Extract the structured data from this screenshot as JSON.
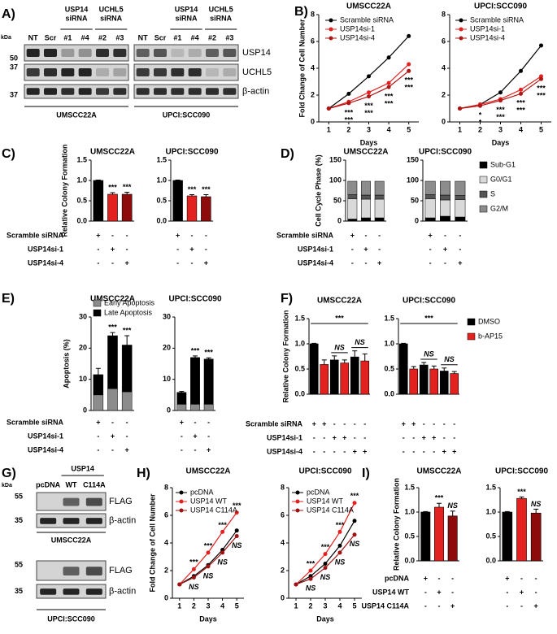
{
  "panel_labels": [
    "A)",
    "B)",
    "C)",
    "D)",
    "E)",
    "F)",
    "G)",
    "H)",
    "I)"
  ],
  "blots": [
    {
      "kda_label": "kDa",
      "lanes": [
        "NT",
        "Scr",
        "#1",
        "#4",
        "#2",
        "#3"
      ],
      "lane_groups": [
        [
          "USP14",
          "siRNA"
        ],
        [
          "UCHL5",
          "siRNA"
        ]
      ],
      "markers": [
        50,
        37,
        37
      ],
      "proteins": [
        "USP14",
        "UCHL5",
        "β-actin"
      ],
      "cell_lines": [
        "UMSCC22A",
        "UPCI:SCC090"
      ]
    },
    {
      "kda_label": "kDa",
      "lanes": [
        "pcDNA",
        "WT",
        "C114A"
      ],
      "lane_group": "USP14",
      "markers": [
        55,
        35
      ],
      "proteins": [
        "FLAG",
        "β-actin"
      ],
      "cell_lines": [
        "UMSCC22A",
        "UPCI:SCC090"
      ]
    }
  ],
  "chart_data": [
    {
      "type": "line",
      "title": "UMSCC22A",
      "y_label": "Fold Change of Cell Number",
      "x_label": "Days",
      "x": [
        1,
        2,
        3,
        4,
        5
      ],
      "xlim": [
        0.5,
        5.5
      ],
      "xticks": [
        1,
        2,
        3,
        4,
        5
      ],
      "ylim": [
        0,
        8
      ],
      "yticks": [
        0,
        2,
        4,
        6,
        8
      ],
      "series": [
        {
          "name": "Scramble siRNA",
          "color": "#000000",
          "values": [
            1,
            2.1,
            3.4,
            4.8,
            6.4
          ]
        },
        {
          "name": "USP14si-1",
          "color": "#e3211f",
          "values": [
            1,
            1.5,
            2.2,
            2.9,
            4.3
          ],
          "sig_labels": [
            null,
            "***",
            "***",
            "***",
            "***"
          ]
        },
        {
          "name": "USP14si-4",
          "color": "#b01515",
          "values": [
            1,
            1.4,
            1.9,
            2.6,
            3.8
          ],
          "sig_labels": [
            null,
            "***",
            "***",
            "***",
            "***"
          ]
        }
      ]
    },
    {
      "type": "line",
      "title": "UPCI:SCC090",
      "x_label": "Days",
      "x": [
        1,
        2,
        3,
        4,
        5
      ],
      "xlim": [
        0.5,
        5.5
      ],
      "xticks": [
        1,
        2,
        3,
        4,
        5
      ],
      "ylim": [
        0,
        8
      ],
      "yticks": [
        0,
        2,
        4,
        6,
        8
      ],
      "series": [
        {
          "name": "Scramble siRNA",
          "color": "#000000",
          "values": [
            1,
            1.3,
            2.2,
            3.8,
            5.7
          ]
        },
        {
          "name": "USP14si-1",
          "color": "#e3211f",
          "values": [
            1,
            1.3,
            1.7,
            2.4,
            3.4
          ],
          "sig_labels": [
            null,
            "*",
            "***",
            "***",
            "***"
          ]
        },
        {
          "name": "USP14si-4",
          "color": "#b01515",
          "values": [
            1,
            1.2,
            1.6,
            2.1,
            3.2
          ],
          "sig_labels": [
            null,
            "*",
            "***",
            "***",
            "***"
          ]
        }
      ]
    },
    {
      "type": "bar",
      "title": "UMSCC22A",
      "y_label": "Relative Colony Formation",
      "values": [
        1,
        0.66,
        0.66
      ],
      "errors": [
        0.01,
        0.04,
        0.05
      ],
      "colors": [
        "#000000",
        "#e3211f",
        "#8e0b0b"
      ],
      "sig_labels": [
        null,
        "***",
        "***"
      ],
      "ylim": [
        0,
        1.5
      ],
      "yticks": [
        {
          "value": 0,
          "label": "0.0"
        },
        0.5,
        {
          "value": 1,
          "label": "1.0"
        },
        1.5
      ],
      "condition_labels": [
        "Scramble siRNA",
        "USP14si-1",
        "USP14si-4"
      ],
      "condition_marks": [
        [
          "+",
          "-",
          "-"
        ],
        [
          "-",
          "+",
          "-"
        ],
        [
          "-",
          "-",
          "+"
        ]
      ]
    },
    {
      "type": "bar",
      "title": "UPCI:SCC090",
      "values": [
        1,
        0.62,
        0.6
      ],
      "errors": [
        0.01,
        0.03,
        0.05
      ],
      "colors": [
        "#000000",
        "#e3211f",
        "#8e0b0b"
      ],
      "sig_labels": [
        null,
        "***",
        "***"
      ],
      "ylim": [
        0,
        1.5
      ],
      "yticks": [
        {
          "value": 0,
          "label": "0.0"
        },
        0.5,
        {
          "value": 1,
          "label": "1.0"
        },
        1.5
      ],
      "condition_marks": [
        [
          "+",
          "-",
          "-"
        ],
        [
          "-",
          "+",
          "-"
        ],
        [
          "-",
          "-",
          "+"
        ]
      ]
    },
    {
      "type": "stacked_bar",
      "title": "UMSCC22A",
      "y_label": "Cell Cycle Phase (%)",
      "ylim": [
        0,
        150
      ],
      "yticks": [
        0,
        50,
        100,
        150
      ],
      "series": [
        {
          "color": "#000000",
          "values": [
            5,
            8,
            8
          ]
        },
        {
          "color": "#d9d9d9",
          "values": [
            50,
            46,
            46
          ]
        },
        {
          "color": "#555555",
          "values": [
            10,
            10,
            10
          ]
        },
        {
          "color": "#8c8c8c",
          "values": [
            33,
            34,
            34
          ]
        }
      ],
      "condition_labels": [
        "Scramble siRNA",
        "USP14si-1",
        "USP14si-4"
      ],
      "condition_marks": [
        [
          "+",
          "-",
          "-"
        ],
        [
          "-",
          "+",
          "-"
        ],
        [
          "-",
          "-",
          "+"
        ]
      ]
    },
    {
      "type": "stacked_bar",
      "title": "UPCI:SCC090",
      "ylim": [
        0,
        150
      ],
      "yticks": [
        0,
        50,
        100,
        150
      ],
      "series": [
        {
          "name": "Sub-G1",
          "color": "#000000",
          "values": [
            8,
            12,
            10
          ]
        },
        {
          "name": "G0/G1",
          "color": "#d9d9d9",
          "values": [
            47,
            40,
            43
          ]
        },
        {
          "name": "S",
          "color": "#555555",
          "values": [
            10,
            12,
            10
          ]
        },
        {
          "name": "G2/M",
          "color": "#8c8c8c",
          "values": [
            33,
            34,
            35
          ]
        }
      ],
      "condition_marks": [
        [
          "+",
          "-",
          "-"
        ],
        [
          "-",
          "+",
          "-"
        ],
        [
          "-",
          "-",
          "+"
        ]
      ]
    },
    {
      "type": "stacked_bar",
      "title": "UMSCC22A",
      "y_label": "Apoptosis (%)",
      "ylim": [
        0,
        30
      ],
      "yticks": [
        0,
        10,
        20,
        30
      ],
      "errors": [
        2,
        1,
        3
      ],
      "sig_labels": [
        null,
        "***",
        "***"
      ],
      "series": [
        {
          "name": "Early Apoptosis",
          "color": "#8c8c8c",
          "values": [
            5,
            7,
            6
          ]
        },
        {
          "name": "Late Apoptosis",
          "color": "#000000",
          "values": [
            6.5,
            17,
            15
          ]
        }
      ],
      "condition_labels": [
        "Scramble siRNA",
        "USP14si-1",
        "USP14si-4"
      ],
      "condition_marks": [
        [
          "+",
          "-",
          "-"
        ],
        [
          "-",
          "+",
          "-"
        ],
        [
          "-",
          "-",
          "+"
        ]
      ]
    },
    {
      "type": "stacked_bar",
      "title": "UPCI:SCC090",
      "ylim": [
        0,
        30
      ],
      "yticks": [
        0,
        10,
        20,
        30
      ],
      "errors": [
        0.3,
        0.5,
        0.4
      ],
      "sig_labels": [
        null,
        "***",
        "***"
      ],
      "series": [
        {
          "color": "#8c8c8c",
          "values": [
            2,
            2,
            2
          ]
        },
        {
          "color": "#000000",
          "values": [
            3.8,
            15,
            14.5
          ]
        }
      ],
      "condition_marks": [
        [
          "+",
          "-",
          "-"
        ],
        [
          "-",
          "+",
          "-"
        ],
        [
          "-",
          "-",
          "+"
        ]
      ]
    },
    {
      "type": "grouped_bar",
      "title": "UMSCC22A",
      "y_label": "Relative Colony Formation",
      "ylim": [
        0,
        1.5
      ],
      "yticks": [
        {
          "value": 0,
          "label": "0.0"
        },
        0.5,
        {
          "value": 1,
          "label": "1.0"
        },
        1.5
      ],
      "sig_labels": [
        null,
        "NS",
        "NS"
      ],
      "overall_label": "***",
      "series": [
        {
          "color": "#000000",
          "values": [
            1,
            0.68,
            0.74
          ],
          "errors": [
            0.01,
            0.08,
            0.12
          ]
        },
        {
          "color": "#e3211f",
          "values": [
            0.59,
            0.62,
            0.66
          ],
          "errors": [
            0.09,
            0.06,
            0.14
          ]
        }
      ],
      "condition_labels": [
        "Scramble siRNA",
        "USP14si-1",
        "USP14si-4"
      ],
      "condition_marks": [
        [
          "+",
          "+",
          "-",
          "-",
          "-",
          "-"
        ],
        [
          "-",
          "-",
          "+",
          "+",
          "-",
          "-"
        ],
        [
          "-",
          "-",
          "-",
          "-",
          "+",
          "+"
        ]
      ]
    },
    {
      "type": "grouped_bar",
      "title": "UPCI:SCC090",
      "ylim": [
        0,
        1.5
      ],
      "yticks": [
        {
          "value": 0,
          "label": "0.0"
        },
        0.5,
        {
          "value": 1,
          "label": "1.0"
        },
        1.5
      ],
      "sig_labels": [
        null,
        "NS",
        "NS"
      ],
      "overall_label": "***",
      "series": [
        {
          "name": "DMSO",
          "color": "#000000",
          "values": [
            1,
            0.58,
            0.46
          ],
          "errors": [
            0.01,
            0.05,
            0.06
          ]
        },
        {
          "name": "b-AP15",
          "color": "#e3211f",
          "values": [
            0.5,
            0.5,
            0.41
          ],
          "errors": [
            0.05,
            0.06,
            0.04
          ]
        }
      ],
      "condition_marks": [
        [
          "+",
          "+",
          "-",
          "-",
          "-",
          "-"
        ],
        [
          "-",
          "-",
          "+",
          "+",
          "-",
          "-"
        ],
        [
          "-",
          "-",
          "-",
          "-",
          "+",
          "+"
        ]
      ]
    },
    {
      "type": "line",
      "title": "UMSCC22A",
      "y_label": "Fold Change of Cell Number",
      "x_label": "Days",
      "x": [
        1,
        2,
        3,
        4,
        5
      ],
      "xlim": [
        0.5,
        5.5
      ],
      "xticks": [
        1,
        2,
        3,
        4,
        5
      ],
      "ylim": [
        0,
        8
      ],
      "yticks": [
        0,
        2,
        4,
        6,
        8
      ],
      "series": [
        {
          "name": "pcDNA",
          "color": "#000000",
          "values": [
            1,
            1.6,
            2.4,
            3.5,
            4.9
          ]
        },
        {
          "name": "USP14 WT",
          "color": "#e3211f",
          "values": [
            1,
            2.1,
            3.3,
            4.8,
            6.2
          ],
          "sig_labels": [
            null,
            "***",
            "***",
            "***",
            "***"
          ]
        },
        {
          "name": "USP14 C114A",
          "color": "#a01212",
          "values": [
            1,
            1.5,
            2.3,
            3.3,
            4.5
          ],
          "sig_labels": [
            null,
            "NS",
            "NS",
            "NS",
            "NS"
          ]
        }
      ]
    },
    {
      "type": "line",
      "title": "UPCI:SCC090",
      "x_label": "Days",
      "x": [
        1,
        2,
        3,
        4,
        5
      ],
      "xlim": [
        0.5,
        5.5
      ],
      "xticks": [
        1,
        2,
        3,
        4,
        5
      ],
      "ylim": [
        0,
        8
      ],
      "yticks": [
        0,
        2,
        4,
        6,
        8
      ],
      "series": [
        {
          "name": "pcDNA",
          "color": "#000000",
          "values": [
            1,
            1.6,
            2.5,
            3.8,
            5.6
          ]
        },
        {
          "name": "USP14 WT",
          "color": "#e3211f",
          "values": [
            1,
            2.0,
            3.2,
            4.8,
            6.9
          ],
          "sig_labels": [
            null,
            "***",
            "***",
            "***",
            "***"
          ]
        },
        {
          "name": "USP14 C114A",
          "color": "#a01212",
          "values": [
            1,
            1.4,
            2.2,
            3.3,
            4.6
          ],
          "sig_labels": [
            null,
            "NS",
            "NS",
            "NS",
            "NS"
          ]
        }
      ]
    },
    {
      "type": "bar",
      "title": "UMSCC22A",
      "y_label": "Relative Colony Formation",
      "values": [
        1,
        1.1,
        0.92
      ],
      "errors": [
        0.01,
        0.08,
        0.1
      ],
      "colors": [
        "#000000",
        "#e3211f",
        "#8e0b0b"
      ],
      "sig_labels": [
        null,
        "***",
        "NS"
      ],
      "ylim": [
        0,
        1.5
      ],
      "yticks": [
        {
          "value": 0,
          "label": "0.0"
        },
        0.5,
        {
          "value": 1,
          "label": "1.0"
        },
        1.5
      ],
      "condition_labels": [
        "pcDNA",
        "USP14 WT",
        "USP14 C114A"
      ],
      "condition_marks": [
        [
          "+",
          "-",
          "-"
        ],
        [
          "-",
          "+",
          "-"
        ],
        [
          "-",
          "-",
          "+"
        ]
      ]
    },
    {
      "type": "bar",
      "title": "UPCI:SCC090",
      "values": [
        1,
        1.28,
        0.98
      ],
      "errors": [
        0.01,
        0.03,
        0.08
      ],
      "colors": [
        "#000000",
        "#e3211f",
        "#8e0b0b"
      ],
      "sig_labels": [
        null,
        "***",
        "NS"
      ],
      "ylim": [
        0,
        1.5
      ],
      "yticks": [
        {
          "value": 0,
          "label": "0.0"
        },
        0.5,
        {
          "value": 1,
          "label": "1.0"
        },
        1.5
      ],
      "condition_marks": [
        [
          "+",
          "-",
          "-"
        ],
        [
          "-",
          "+",
          "-"
        ],
        [
          "-",
          "-",
          "+"
        ]
      ]
    }
  ]
}
